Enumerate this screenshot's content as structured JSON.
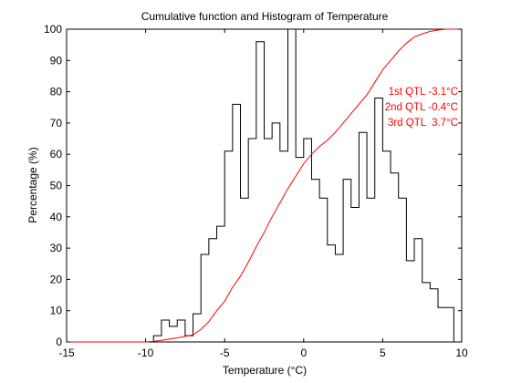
{
  "chart_data": {
    "type": "line",
    "title": "Cumulative function and Histogram of Temperature",
    "xlabel": "Temperature (°C)",
    "ylabel": "Percentage (%)",
    "xlim": [
      -15,
      10
    ],
    "ylim": [
      0,
      100
    ],
    "x_ticks": [
      -15,
      -10,
      -5,
      0,
      5,
      10
    ],
    "y_ticks": [
      0,
      10,
      20,
      30,
      40,
      50,
      60,
      70,
      80,
      90,
      100
    ],
    "x_tick_labels": [
      "-15",
      "-10",
      "-5",
      "0",
      "5",
      "10"
    ],
    "y_tick_labels": [
      "0",
      "10",
      "20",
      "30",
      "40",
      "50",
      "60",
      "70",
      "80",
      "90",
      "100"
    ],
    "grid": false,
    "colors": {
      "histogram": "#000000",
      "cumulative": "#ff0000",
      "annotation": "#ff0000"
    },
    "series": [
      {
        "kind": "histogram-stairs",
        "bin_edges": [
          -9.5,
          -9.0,
          -8.5,
          -8.0,
          -7.5,
          -7.0,
          -6.5,
          -6.0,
          -5.5,
          -5.0,
          -4.5,
          -4.0,
          -3.5,
          -3.0,
          -2.5,
          -2.0,
          -1.5,
          -1.0,
          -0.5,
          0.0,
          0.5,
          1.0,
          1.5,
          2.0,
          2.5,
          3.0,
          3.5,
          4.0,
          4.5,
          5.0,
          5.5,
          6.0,
          6.5,
          7.0,
          7.5,
          8.0,
          8.5,
          9.0,
          9.5
        ],
        "values": [
          2,
          7,
          5,
          7,
          2,
          9,
          28,
          33,
          37,
          61,
          76,
          46,
          65,
          96,
          65,
          70,
          61,
          100,
          59,
          65,
          52,
          46,
          31,
          28,
          52,
          43,
          67,
          46,
          78,
          61,
          54,
          46,
          26,
          33,
          19,
          17,
          11,
          11
        ]
      },
      {
        "kind": "cumulative",
        "x": [
          -10,
          -9.5,
          -9,
          -8.5,
          -8,
          -7.5,
          -7,
          -6.5,
          -6,
          -5.5,
          -5,
          -4.5,
          -4,
          -3.5,
          -3,
          -2.5,
          -2,
          -1.5,
          -1,
          -0.5,
          0,
          0.5,
          1,
          1.5,
          2,
          2.5,
          3,
          3.5,
          4,
          4.5,
          5,
          5.5,
          6,
          6.5,
          7,
          7.5,
          8,
          8.5,
          9,
          9.5
        ],
        "y": [
          0,
          0.2,
          0.5,
          0.9,
          1.3,
          1.8,
          2.3,
          4.0,
          6.5,
          10.0,
          13.0,
          17.5,
          21.0,
          25.5,
          30.5,
          35.0,
          40.0,
          44.5,
          49.0,
          53.0,
          57.0,
          60.0,
          62.5,
          64.5,
          67.0,
          70.0,
          73.0,
          76.0,
          79.0,
          83.0,
          87.0,
          90.0,
          93.0,
          95.5,
          97.5,
          98.5,
          99.3,
          99.7,
          100.0,
          100.0
        ]
      }
    ],
    "annotations": [
      {
        "text": "1st QTL -3.1°C"
      },
      {
        "text": "2nd QTL -0.4°C"
      },
      {
        "text": "3rd QTL  3.7°C"
      }
    ]
  }
}
